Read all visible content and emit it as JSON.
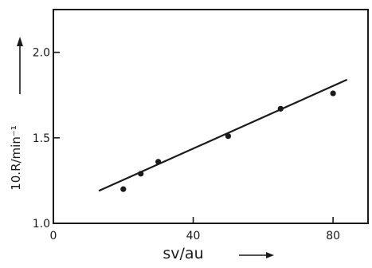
{
  "chart_data": {
    "type": "scatter",
    "xlabel": "sv/au",
    "ylabel": "10.R/min⁻¹",
    "xlim": [
      0,
      90
    ],
    "ylim": [
      1.0,
      2.25
    ],
    "x_ticks": [
      0,
      40,
      80
    ],
    "x_tick_labels": [
      "0",
      "40",
      "80"
    ],
    "y_ticks": [
      1.0,
      1.5,
      2.0
    ],
    "y_tick_labels": [
      "1.0",
      "1.5",
      "2.0"
    ],
    "grid": false,
    "series": [
      {
        "points": [
          {
            "x": 20,
            "y": 1.2
          },
          {
            "x": 25,
            "y": 1.29
          },
          {
            "x": 30,
            "y": 1.36
          },
          {
            "x": 50,
            "y": 1.51
          },
          {
            "x": 65,
            "y": 1.67
          },
          {
            "x": 80,
            "y": 1.76
          }
        ]
      }
    ],
    "fit_line": {
      "x": [
        13,
        84
      ],
      "y": [
        1.19,
        1.84
      ]
    }
  }
}
